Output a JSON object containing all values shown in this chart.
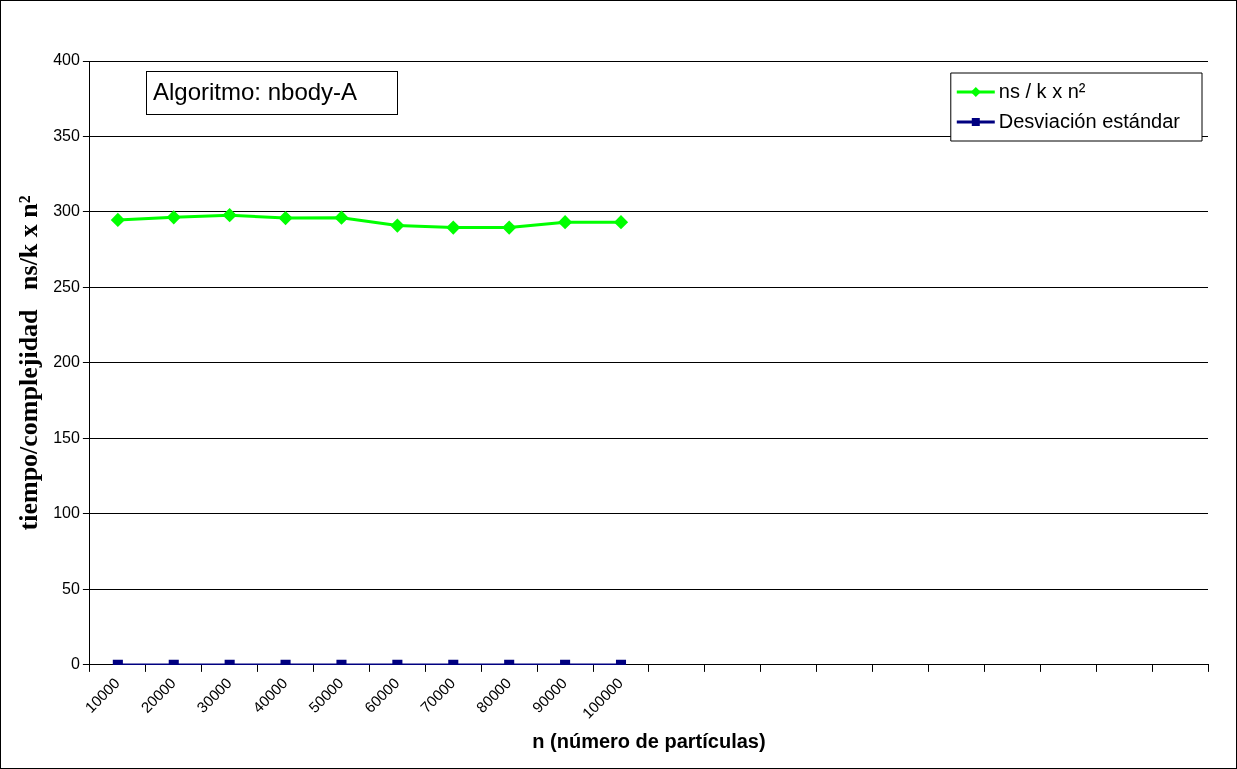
{
  "chart_data": {
    "type": "line",
    "xlabel": "n (número de partículas)",
    "ylabel": "tiempo/complejidad   ns/k x n²",
    "categories": [
      "10000",
      "20000",
      "30000",
      "40000",
      "50000",
      "60000",
      "70000",
      "80000",
      "90000",
      "100000",
      null,
      null,
      null,
      null,
      null,
      null,
      null,
      null,
      null,
      null
    ],
    "series": [
      {
        "name": "ns / k x n²",
        "color": "#00ff00",
        "marker": "diamond",
        "values": [
          294.7,
          296.5,
          297.9,
          296,
          296.2,
          291,
          289.7,
          289.7,
          293.2,
          293.2,
          null,
          null,
          null,
          null,
          null,
          null,
          null,
          null,
          null,
          null
        ]
      },
      {
        "name": "Desviación estándar",
        "color": "#000080",
        "marker": "square",
        "values": [
          0,
          0,
          0,
          0,
          0,
          0,
          0,
          0,
          0,
          0,
          null,
          null,
          null,
          null,
          null,
          null,
          null,
          null,
          null,
          null
        ]
      }
    ],
    "ylim": [
      0,
      400
    ],
    "yticks": [
      0,
      50,
      100,
      150,
      200,
      250,
      300,
      350,
      400
    ],
    "grid": "y",
    "legend": "top right",
    "annotations": [
      "Algoritmo: nbody-A"
    ]
  }
}
